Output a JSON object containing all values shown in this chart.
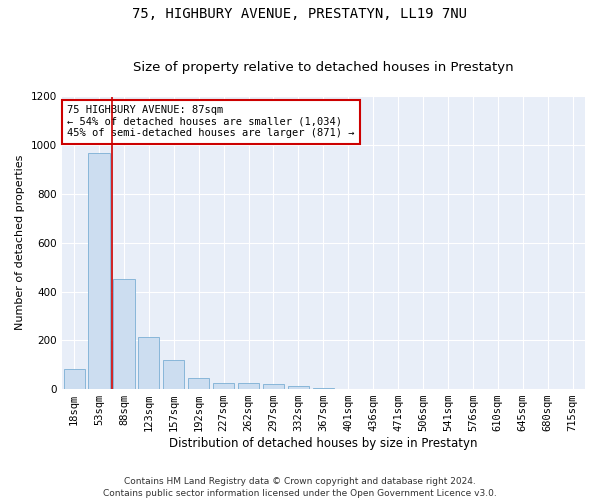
{
  "title": "75, HIGHBURY AVENUE, PRESTATYN, LL19 7NU",
  "subtitle": "Size of property relative to detached houses in Prestatyn",
  "xlabel": "Distribution of detached houses by size in Prestatyn",
  "ylabel": "Number of detached properties",
  "bar_color": "#ccddf0",
  "bar_edge_color": "#7bafd4",
  "background_color": "#e8eef8",
  "annotation_line_color": "#cc0000",
  "annotation_box_color": "#cc0000",
  "annotation_text": "75 HIGHBURY AVENUE: 87sqm\n← 54% of detached houses are smaller (1,034)\n45% of semi-detached houses are larger (871) →",
  "categories": [
    "18sqm",
    "53sqm",
    "88sqm",
    "123sqm",
    "157sqm",
    "192sqm",
    "227sqm",
    "262sqm",
    "297sqm",
    "332sqm",
    "367sqm",
    "401sqm",
    "436sqm",
    "471sqm",
    "506sqm",
    "541sqm",
    "576sqm",
    "610sqm",
    "645sqm",
    "680sqm",
    "715sqm"
  ],
  "values": [
    82,
    970,
    453,
    215,
    120,
    47,
    26,
    24,
    22,
    13,
    5,
    0,
    0,
    0,
    0,
    0,
    0,
    0,
    0,
    0,
    0
  ],
  "ylim": [
    0,
    1200
  ],
  "yticks": [
    0,
    200,
    400,
    600,
    800,
    1000,
    1200
  ],
  "red_line_x": 1.5,
  "footnote": "Contains HM Land Registry data © Crown copyright and database right 2024.\nContains public sector information licensed under the Open Government Licence v3.0.",
  "title_fontsize": 10,
  "subtitle_fontsize": 9.5,
  "xlabel_fontsize": 8.5,
  "ylabel_fontsize": 8,
  "tick_fontsize": 7.5,
  "annotation_fontsize": 7.5,
  "footnote_fontsize": 6.5
}
